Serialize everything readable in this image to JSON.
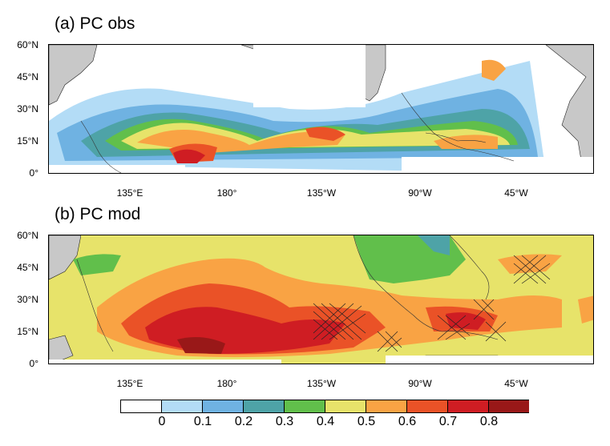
{
  "panels": [
    {
      "title": "(a) PC obs"
    },
    {
      "title": "(b) PC mod"
    }
  ],
  "lat_labels": [
    "60°N",
    "45°N",
    "30°N",
    "15°N",
    "0°"
  ],
  "lon_labels": [
    "135°E",
    "180°",
    "135°W",
    "90°W",
    "45°W"
  ],
  "colorbar": {
    "labels": [
      "0",
      "0.1",
      "0.2",
      "0.3",
      "0.4",
      "0.5",
      "0.6",
      "0.7",
      "0.8"
    ],
    "colors": [
      "#ffffff",
      "#b3dcf6",
      "#6fb2e2",
      "#4ea3a7",
      "#61bf4b",
      "#e7e36a",
      "#f9a344",
      "#ea5227",
      "#cf1d23",
      "#991818"
    ]
  },
  "land_color": "#c8c8c8"
}
